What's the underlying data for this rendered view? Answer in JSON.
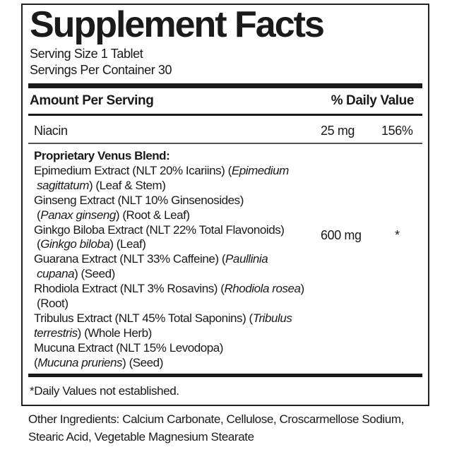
{
  "title": "Supplement Facts",
  "serving_size": "Serving Size 1 Tablet",
  "servings_per_container": "Servings Per Container 30",
  "header": {
    "amount": "Amount Per Serving",
    "dv": "% Daily Value"
  },
  "niacin": {
    "name": "Niacin",
    "amount": "25 mg",
    "dv": "156%"
  },
  "blend": {
    "name": "Proprietary Venus Blend:",
    "amount": "600 mg",
    "dv": "*",
    "lines": [
      {
        "indent": false,
        "segments": [
          {
            "t": "Epimedium Extract (NLT 20% Icariins) ("
          },
          {
            "t": "Epimedium",
            "i": true
          }
        ]
      },
      {
        "indent": true,
        "segments": [
          {
            "t": "sagittatum",
            "i": true
          },
          {
            "t": ") (Leaf & Stem)"
          }
        ]
      },
      {
        "indent": false,
        "segments": [
          {
            "t": "Ginseng Extract (NLT 10% Ginsenosides)"
          }
        ]
      },
      {
        "indent": true,
        "segments": [
          {
            "t": "("
          },
          {
            "t": "Panax ginseng",
            "i": true
          },
          {
            "t": ") (Root & Leaf)"
          }
        ]
      },
      {
        "indent": false,
        "segments": [
          {
            "t": "Ginkgo Biloba Extract (NLT 22% Total Flavonoids)"
          }
        ]
      },
      {
        "indent": true,
        "segments": [
          {
            "t": "("
          },
          {
            "t": "Ginkgo biloba",
            "i": true
          },
          {
            "t": ") (Leaf)"
          }
        ]
      },
      {
        "indent": false,
        "segments": [
          {
            "t": "Guarana Extract (NLT 33% Caffeine) ("
          },
          {
            "t": "Paullinia",
            "i": true
          }
        ]
      },
      {
        "indent": true,
        "segments": [
          {
            "t": "cupana",
            "i": true
          },
          {
            "t": ") (Seed)"
          }
        ]
      },
      {
        "indent": false,
        "segments": [
          {
            "t": "Rhodiola Extract (NLT 3% Rosavins) ("
          },
          {
            "t": "Rhodiola rosea",
            "i": true
          },
          {
            "t": ")"
          }
        ]
      },
      {
        "indent": true,
        "segments": [
          {
            "t": "(Root)"
          }
        ]
      },
      {
        "indent": false,
        "segments": [
          {
            "t": "Tribulus Extract (NLT 45% Total Saponins) ("
          },
          {
            "t": "Tribulus",
            "i": true
          }
        ]
      },
      {
        "indent": false,
        "segments": [
          {
            "t": "terrestris",
            "i": true
          },
          {
            "t": ") (Whole Herb)"
          }
        ]
      },
      {
        "indent": false,
        "segments": [
          {
            "t": "Mucuna Extract (NLT 15% Levodopa)"
          }
        ]
      },
      {
        "indent": false,
        "segments": [
          {
            "t": "("
          },
          {
            "t": "Mucuna pruriens",
            "i": true
          },
          {
            "t": ") (Seed)"
          }
        ]
      }
    ]
  },
  "footnote": "*Daily Values not established.",
  "other_ingredients": [
    "Other Ingredients: Calcium Carbonate, Cellulose, Croscarmellose Sodium,",
    "Stearic Acid, Vegetable Magnesium Stearate"
  ]
}
